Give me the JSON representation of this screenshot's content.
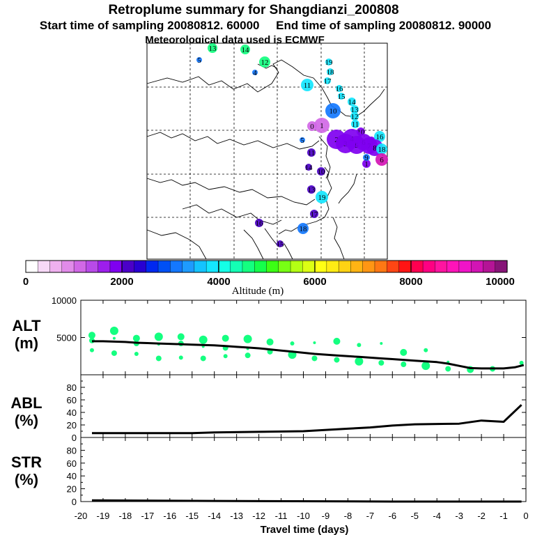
{
  "header": {
    "title": "Retroplume summary for Shangdianzi_200808",
    "subtitle": "Start time of sampling 20080812. 60000     End time of sampling 20080812. 90000",
    "met_line": "Meteorological data used is ECMWF"
  },
  "colorbar": {
    "axis_label": "Altitude (m)",
    "tick_labels": [
      "0",
      "2000",
      "4000",
      "6000",
      "8000",
      "10000"
    ],
    "range": [
      0,
      10000
    ],
    "colors": [
      "#ffffff",
      "#f7d9f7",
      "#efb0ef",
      "#e18be9",
      "#d168e6",
      "#b84ae8",
      "#9d1eec",
      "#7f00f0",
      "#4b00c8",
      "#2800d2",
      "#0028f0",
      "#0050f5",
      "#1478ff",
      "#1e9bff",
      "#14c3ff",
      "#14e6ff",
      "#14ffe6",
      "#14ffb4",
      "#14ff80",
      "#14ff4b",
      "#3cff14",
      "#78ff14",
      "#b4ff14",
      "#dcff14",
      "#ffff14",
      "#ffeb14",
      "#ffd214",
      "#ffb414",
      "#ff9614",
      "#ff7814",
      "#ff4614",
      "#ff1414",
      "#ff0050",
      "#ff0082",
      "#ff14a0",
      "#ff14b9",
      "#f014c8",
      "#d214b4",
      "#b41496",
      "#871478"
    ]
  },
  "map_markers": [
    {
      "label": "13",
      "color": "#14ff80"
    },
    {
      "label": "14",
      "color": "#14ff80"
    },
    {
      "label": "5",
      "color": "#1478ff"
    },
    {
      "label": "12",
      "color": "#14ff80"
    },
    {
      "label": "4",
      "color": "#1478ff"
    },
    {
      "label": "19",
      "color": "#14e6ff"
    },
    {
      "label": "18",
      "color": "#14e6ff"
    },
    {
      "label": "17",
      "color": "#14e6ff"
    },
    {
      "label": "11",
      "color": "#14e6ff"
    },
    {
      "label": "16",
      "color": "#14e6ff"
    },
    {
      "label": "15",
      "color": "#14e6ff"
    },
    {
      "label": "14",
      "color": "#14e6ff"
    },
    {
      "label": "13",
      "color": "#14e6ff"
    },
    {
      "label": "10",
      "color": "#1478ff"
    },
    {
      "label": "12",
      "color": "#14e6ff"
    },
    {
      "label": "11",
      "color": "#14e6ff"
    },
    {
      "label": "0",
      "color": "#d168e6"
    },
    {
      "label": "1",
      "color": "#d168e6"
    },
    {
      "label": "10",
      "color": "#7f00f0"
    },
    {
      "label": "9",
      "color": "#7f00f0"
    },
    {
      "label": "16",
      "color": "#14e6ff"
    },
    {
      "label": "5",
      "color": "#1478ff"
    },
    {
      "label": "2",
      "color": "#7f00f0"
    },
    {
      "label": "3",
      "color": "#7f00f0"
    },
    {
      "label": "4",
      "color": "#7f00f0"
    },
    {
      "label": "5",
      "color": "#7f00f0"
    },
    {
      "label": "6",
      "color": "#7f00f0"
    },
    {
      "label": "7",
      "color": "#7f00f0"
    },
    {
      "label": "8",
      "color": "#7f00f0"
    },
    {
      "label": "18",
      "color": "#14e6ff"
    },
    {
      "label": "6",
      "color": "#d214b4"
    },
    {
      "label": "1",
      "color": "#7f00f0"
    },
    {
      "label": "11",
      "color": "#4b00c8"
    },
    {
      "label": "10",
      "color": "#4b00c8"
    },
    {
      "label": "13",
      "color": "#4b00c8"
    },
    {
      "label": "19",
      "color": "#14e6ff"
    },
    {
      "label": "14",
      "color": "#4b00c8"
    },
    {
      "label": "17",
      "color": "#4b00c8"
    },
    {
      "label": "18",
      "color": "#1478ff"
    },
    {
      "label": "16",
      "color": "#4b00c8"
    },
    {
      "label": "9",
      "color": "#1478ff"
    },
    {
      "label": "15",
      "color": "#4b00c8"
    }
  ],
  "panels": {
    "alt": {
      "label": "ALT",
      "unit": "(m)"
    },
    "abl": {
      "label": "ABL",
      "unit": "(%)"
    },
    "str": {
      "label": "STR",
      "unit": "(%)"
    },
    "xlabel": "Travel time (days)"
  },
  "chart_data": [
    {
      "type": "line",
      "title": "ALT",
      "ylabel": "(m)",
      "xlabel": "Travel time (days)",
      "xlim": [
        -20,
        0
      ],
      "ylim": [
        0,
        10000
      ],
      "ytick_labels": [
        "5000",
        "10000"
      ],
      "x": [
        -19.5,
        -19,
        -18.5,
        -18,
        -17.5,
        -17,
        -16.5,
        -16,
        -15.5,
        -15,
        -14.5,
        -14,
        -13.5,
        -13,
        -12.5,
        -12,
        -11.5,
        -11,
        -10.5,
        -10,
        -9.5,
        -9,
        -8.5,
        -8,
        -7.5,
        -7,
        -6.5,
        -6,
        -5.5,
        -5,
        -4.5,
        -4,
        -3.5,
        -3,
        -2.5,
        -2,
        -1.5,
        -1,
        -0.5,
        -0.1
      ],
      "series": [
        {
          "name": "median altitude",
          "values": [
            4500,
            4500,
            4450,
            4400,
            4300,
            4250,
            4200,
            4150,
            4100,
            4050,
            4000,
            3950,
            3850,
            3750,
            3650,
            3550,
            3400,
            3250,
            3100,
            2950,
            2800,
            2700,
            2600,
            2500,
            2400,
            2300,
            2200,
            2100,
            2000,
            1900,
            1800,
            1700,
            1500,
            1200,
            900,
            850,
            850,
            850,
            1000,
            1300
          ]
        }
      ],
      "scatter": [
        {
          "x": -19.5,
          "y": 5300
        },
        {
          "x": -19.5,
          "y": 4600
        },
        {
          "x": -19.5,
          "y": 3300
        },
        {
          "x": -18.5,
          "y": 5900
        },
        {
          "x": -18.5,
          "y": 4900
        },
        {
          "x": -18.5,
          "y": 2900
        },
        {
          "x": -17.5,
          "y": 4900
        },
        {
          "x": -17.5,
          "y": 4200
        },
        {
          "x": -17.5,
          "y": 2800
        },
        {
          "x": -16.5,
          "y": 5100
        },
        {
          "x": -16.5,
          "y": 4100
        },
        {
          "x": -16.5,
          "y": 2200
        },
        {
          "x": -15.5,
          "y": 5100
        },
        {
          "x": -15.5,
          "y": 4200
        },
        {
          "x": -15.5,
          "y": 2300
        },
        {
          "x": -14.5,
          "y": 4700
        },
        {
          "x": -14.5,
          "y": 3800
        },
        {
          "x": -14.5,
          "y": 2200
        },
        {
          "x": -13.5,
          "y": 4900
        },
        {
          "x": -13.5,
          "y": 3600
        },
        {
          "x": -13.5,
          "y": 2500
        },
        {
          "x": -12.5,
          "y": 4800
        },
        {
          "x": -12.5,
          "y": 3500
        },
        {
          "x": -12.5,
          "y": 2600
        },
        {
          "x": -11.5,
          "y": 4400
        },
        {
          "x": -11.5,
          "y": 3100
        },
        {
          "x": -10.5,
          "y": 4200
        },
        {
          "x": -10.5,
          "y": 2700
        },
        {
          "x": -9.5,
          "y": 4300
        },
        {
          "x": -9.5,
          "y": 2200
        },
        {
          "x": -8.5,
          "y": 4500
        },
        {
          "x": -8.5,
          "y": 2000
        },
        {
          "x": -7.5,
          "y": 4000
        },
        {
          "x": -7.5,
          "y": 1800
        },
        {
          "x": -6.5,
          "y": 4200
        },
        {
          "x": -6.5,
          "y": 1600
        },
        {
          "x": -5.5,
          "y": 3000
        },
        {
          "x": -5.5,
          "y": 1400
        },
        {
          "x": -4.5,
          "y": 3300
        },
        {
          "x": -4.5,
          "y": 1200
        },
        {
          "x": -3.5,
          "y": 1700
        },
        {
          "x": -3.5,
          "y": 800
        },
        {
          "x": -2.5,
          "y": 700
        },
        {
          "x": -1.5,
          "y": 800
        },
        {
          "x": -0.2,
          "y": 1600
        }
      ]
    },
    {
      "type": "line",
      "title": "ABL",
      "ylabel": "(%)",
      "xlim": [
        -20,
        0
      ],
      "ylim": [
        0,
        100
      ],
      "ytick_labels": [
        "0",
        "20",
        "40",
        "60",
        "80"
      ],
      "x": [
        -19.5,
        -15,
        -14,
        -12,
        -10,
        -8,
        -7,
        -6,
        -5,
        -3,
        -2,
        -1.5,
        -1,
        -0.2
      ],
      "series": [
        {
          "name": "ABL fraction",
          "values": [
            7,
            7,
            8,
            9,
            10,
            14,
            16,
            19,
            21,
            22,
            27,
            26,
            25,
            52
          ]
        }
      ]
    },
    {
      "type": "line",
      "title": "STR",
      "ylabel": "(%)",
      "xlim": [
        -20,
        0
      ],
      "ylim": [
        0,
        100
      ],
      "ytick_labels": [
        "0",
        "20",
        "40",
        "60",
        "80"
      ],
      "x": [
        -19.5,
        -14,
        -6,
        -0.2
      ],
      "series": [
        {
          "name": "stratospheric fraction",
          "values": [
            2,
            1,
            0,
            0
          ]
        }
      ]
    }
  ],
  "xaxis": {
    "tick_labels": [
      "-20",
      "-19",
      "-18",
      "-17",
      "-16",
      "-15",
      "-14",
      "-13",
      "-12",
      "-11",
      "-10",
      "-9",
      "-8",
      "-7",
      "-6",
      "-5",
      "-4",
      "-3",
      "-2",
      "-1",
      "0"
    ]
  }
}
